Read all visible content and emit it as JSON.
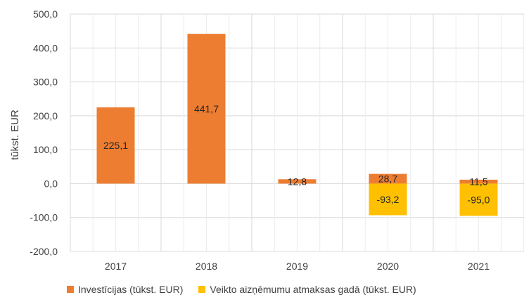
{
  "chart_data": {
    "type": "bar",
    "stacked": true,
    "categories": [
      "2017",
      "2018",
      "2019",
      "2020",
      "2021"
    ],
    "series": [
      {
        "name": "Investīcijas (tūkst. EUR)",
        "values": [
          225.1,
          441.7,
          12.8,
          28.7,
          11.5
        ],
        "labels": [
          "225,1",
          "441,7",
          "12,8",
          "28,7",
          "11,5"
        ],
        "color": "#ED7D31"
      },
      {
        "name": "Veikto aizņēmumu atmaksas gadā (tūkst. EUR)",
        "values": [
          null,
          null,
          null,
          -93.2,
          -95.0
        ],
        "labels": [
          "",
          "",
          "",
          "-93,2",
          "-95,0"
        ],
        "color": "#FFC000"
      }
    ],
    "ylabel": "tūkst. EUR",
    "ylim": [
      -200,
      500
    ],
    "yticks": [
      500,
      400,
      300,
      200,
      100,
      0,
      -100,
      -200
    ],
    "ytick_labels": [
      "500,0",
      "400,0",
      "300,0",
      "200,0",
      "100,0",
      "0,0",
      "-100,0",
      "-200,0"
    ],
    "grid": true,
    "legend_position": "bottom"
  }
}
